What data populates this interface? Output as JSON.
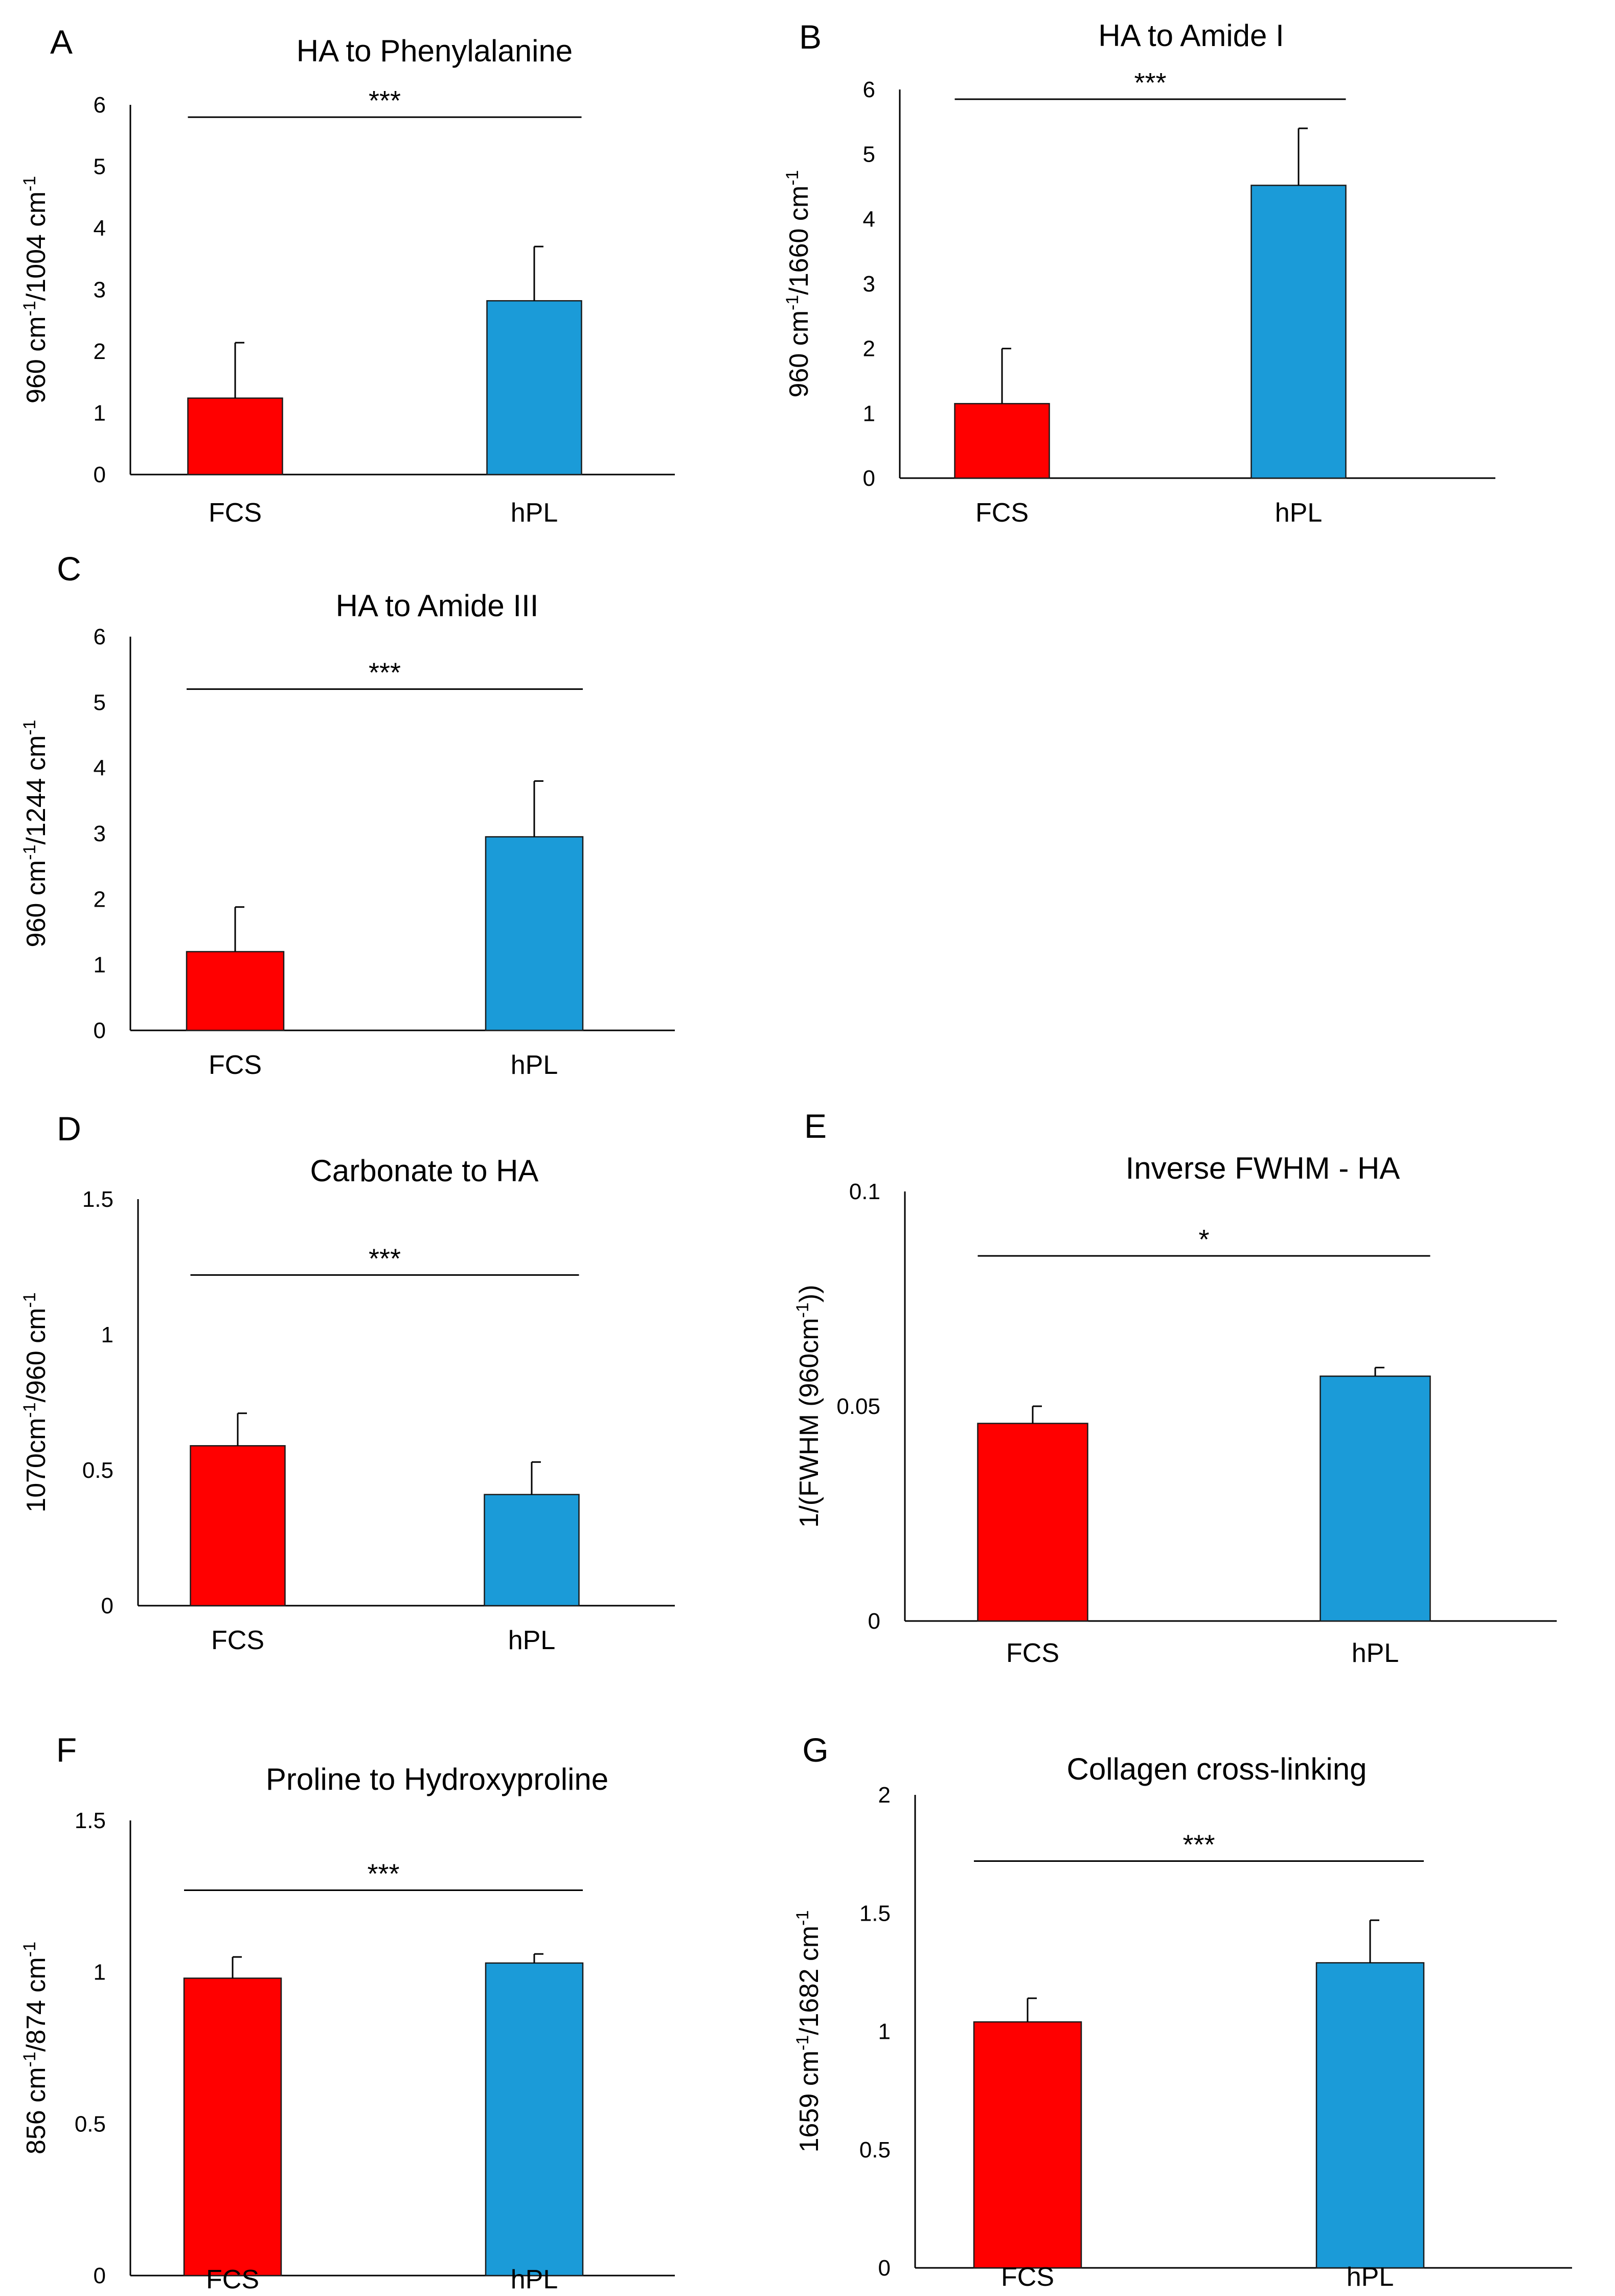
{
  "chart_data": [
    {
      "panel": "A",
      "type": "bar",
      "title": "HA to Phenylalanine",
      "ylabel_base": "960 cm",
      "ylabel_mid": "/1004 cm",
      "ylabel_sup": "-1",
      "categories": [
        "FCS",
        "hPL"
      ],
      "values": [
        1.24,
        2.82
      ],
      "errors": [
        0.9,
        0.88
      ],
      "colors": [
        "#ff0000",
        "#1b9bd8"
      ],
      "ylim": [
        0,
        6
      ],
      "yticks": [
        0,
        1,
        2,
        3,
        4,
        5,
        6
      ],
      "ytick_labels": [
        "0",
        "1",
        "2",
        "3",
        "4",
        "5",
        "6"
      ],
      "significance": "***",
      "signif_y": 5.8
    },
    {
      "panel": "B",
      "type": "bar",
      "title": "HA to Amide I",
      "ylabel_base": "960 cm",
      "ylabel_mid": "/1660 cm",
      "ylabel_sup": "-1",
      "categories": [
        "FCS",
        "hPL"
      ],
      "values": [
        1.15,
        4.52
      ],
      "errors": [
        0.85,
        0.88
      ],
      "colors": [
        "#ff0000",
        "#1b9bd8"
      ],
      "ylim": [
        0,
        6
      ],
      "yticks": [
        0,
        1,
        2,
        3,
        4,
        5,
        6
      ],
      "ytick_labels": [
        "0",
        "1",
        "2",
        "3",
        "4",
        "5",
        "6"
      ],
      "significance": "***",
      "signif_y": 5.85
    },
    {
      "panel": "C",
      "type": "bar",
      "title": "HA to Amide III",
      "ylabel_base": "960 cm",
      "ylabel_mid": "/1244 cm",
      "ylabel_sup": "-1",
      "categories": [
        "FCS",
        "hPL"
      ],
      "values": [
        1.2,
        2.95
      ],
      "errors": [
        0.68,
        0.85
      ],
      "colors": [
        "#ff0000",
        "#1b9bd8"
      ],
      "ylim": [
        0,
        6
      ],
      "yticks": [
        0,
        1,
        2,
        3,
        4,
        5,
        6
      ],
      "ytick_labels": [
        "0",
        "1",
        "2",
        "3",
        "4",
        "5",
        "6"
      ],
      "significance": "***",
      "signif_y": 5.2
    },
    {
      "panel": "D",
      "type": "bar",
      "title": "Carbonate to HA",
      "ylabel_base": "1070cm",
      "ylabel_mid": "/960 cm",
      "ylabel_sup": "-1",
      "categories": [
        "FCS",
        "hPL"
      ],
      "values": [
        0.59,
        0.41
      ],
      "errors": [
        0.12,
        0.12
      ],
      "colors": [
        "#ff0000",
        "#1b9bd8"
      ],
      "ylim": [
        0,
        1.5
      ],
      "yticks": [
        0,
        0.5,
        1,
        1.5
      ],
      "ytick_labels": [
        "0",
        "0.5",
        "1",
        "1.5"
      ],
      "significance": "***",
      "signif_y": 1.22
    },
    {
      "panel": "E",
      "type": "bar",
      "title": "Inverse FWHM - HA",
      "ylabel_base": "1/(FWHM (960cm",
      "ylabel_mid": "))",
      "ylabel_sup": "-1",
      "categories": [
        "FCS",
        "hPL"
      ],
      "values": [
        0.046,
        0.057
      ],
      "errors": [
        0.004,
        0.002
      ],
      "colors": [
        "#ff0000",
        "#1b9bd8"
      ],
      "ylim": [
        0,
        0.1
      ],
      "yticks": [
        0,
        0.05,
        0.1
      ],
      "ytick_labels": [
        "0",
        "0.05",
        "0.1"
      ],
      "significance": "*",
      "signif_y": 0.085
    },
    {
      "panel": "F",
      "type": "bar",
      "title": "Proline to Hydroxyproline",
      "ylabel_base": "856 cm",
      "ylabel_mid": "/874 cm",
      "ylabel_sup": "-1",
      "categories": [
        "FCS",
        "hPL"
      ],
      "values": [
        0.98,
        1.03
      ],
      "errors": [
        0.07,
        0.03
      ],
      "colors": [
        "#ff0000",
        "#1b9bd8"
      ],
      "ylim": [
        0,
        1.5
      ],
      "yticks": [
        0,
        0.5,
        1,
        1.5
      ],
      "ytick_labels": [
        "0",
        "0.5",
        "1",
        "1.5"
      ],
      "significance": "***",
      "signif_y": 1.27
    },
    {
      "panel": "G",
      "type": "bar",
      "title": "Collagen cross-linking",
      "ylabel_base": "1659 cm",
      "ylabel_mid": "/1682 cm",
      "ylabel_sup": "-1",
      "categories": [
        "FCS",
        "hPL"
      ],
      "values": [
        1.04,
        1.29
      ],
      "errors": [
        0.1,
        0.18
      ],
      "colors": [
        "#ff0000",
        "#1b9bd8"
      ],
      "ylim": [
        0,
        2
      ],
      "yticks": [
        0,
        0.5,
        1,
        1.5,
        2
      ],
      "ytick_labels": [
        "0",
        "0.5",
        "1",
        "1.5",
        "2"
      ],
      "significance": "***",
      "signif_y": 1.72
    }
  ]
}
